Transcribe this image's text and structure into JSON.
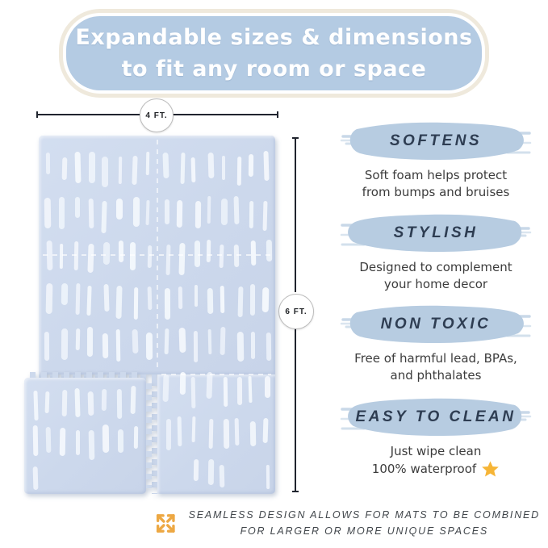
{
  "banner": {
    "line1": "Expandable sizes & dimensions",
    "line2": "to fit any room or space"
  },
  "dimensions": {
    "width_label": "4 FT.",
    "height_label": "6 FT."
  },
  "features": [
    {
      "title": "SOFTENS",
      "line1": "Soft foam helps protect",
      "line2": "from bumps and bruises"
    },
    {
      "title": "STYLISH",
      "line1": "Designed to complement",
      "line2": "your home decor"
    },
    {
      "title": "NON TOXIC",
      "line1": "Free of harmful lead, BPAs,",
      "line2": "and phthalates"
    },
    {
      "title": "EASY TO CLEAN",
      "line1": "Just wipe clean",
      "line2": "100% waterproof",
      "icon": "star-icon"
    }
  ],
  "footer": {
    "icon": "expand-arrows-icon",
    "line1": "SEAMLESS DESIGN ALLOWS FOR MATS TO BE COMBINED",
    "line2": "FOR LARGER OR MORE UNIQUE SPACES"
  },
  "colors": {
    "banner_blue": "#b4cbe3",
    "banner_ring_cream": "#efe9dc",
    "brush_blue": "#b7cce1",
    "title_navy": "#2e3d52",
    "body_gray": "#3c3c3c",
    "mat_base": "#cdd9ec",
    "mat_stroke": "#f3f7fc",
    "star_gold": "#f6b537",
    "arrow_orange": "#eda843",
    "dim_line": "#20242e"
  },
  "mat_pattern": {
    "big": {
      "stroke_rows": 8,
      "stroke_cols": 16
    },
    "small": {
      "stroke_rows": 3,
      "stroke_cols": 8
    }
  }
}
